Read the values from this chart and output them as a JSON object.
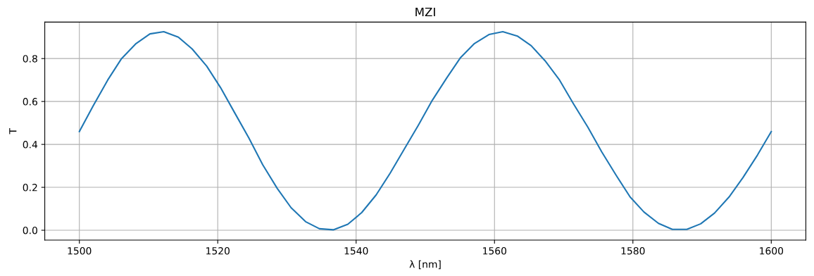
{
  "chart_data": {
    "type": "line",
    "title": "MZI",
    "xlabel": "λ [nm]",
    "ylabel": "T",
    "x": [
      1500,
      1502.0,
      1504.1,
      1506.1,
      1508.2,
      1510.2,
      1512.2,
      1514.3,
      1516.3,
      1518.4,
      1520.4,
      1522.4,
      1524.5,
      1526.5,
      1528.6,
      1530.6,
      1532.7,
      1534.7,
      1536.7,
      1538.8,
      1540.8,
      1542.9,
      1544.9,
      1546.9,
      1549.0,
      1551.0,
      1553.1,
      1555.1,
      1557.1,
      1559.2,
      1561.2,
      1563.3,
      1565.3,
      1567.3,
      1569.4,
      1571.4,
      1573.5,
      1575.5,
      1577.6,
      1579.6,
      1581.6,
      1583.7,
      1585.7,
      1587.8,
      1589.8,
      1591.8,
      1593.9,
      1595.9,
      1598.0,
      1600
    ],
    "series": [
      {
        "color": "#1f77b4",
        "values": [
          0.46,
          0.58,
          0.7,
          0.8,
          0.87,
          0.915,
          0.925,
          0.9,
          0.845,
          0.765,
          0.665,
          0.55,
          0.43,
          0.305,
          0.195,
          0.105,
          0.04,
          0.007,
          0.002,
          0.028,
          0.082,
          0.165,
          0.265,
          0.375,
          0.49,
          0.605,
          0.71,
          0.805,
          0.87,
          0.912,
          0.925,
          0.905,
          0.86,
          0.79,
          0.7,
          0.59,
          0.48,
          0.365,
          0.255,
          0.155,
          0.085,
          0.032,
          0.004,
          0.004,
          0.03,
          0.08,
          0.155,
          0.245,
          0.35,
          0.46
        ]
      }
    ],
    "xlim": [
      1495,
      1605
    ],
    "ylim": [
      -0.046,
      0.97
    ],
    "xticks": [
      1500,
      1520,
      1540,
      1560,
      1580,
      1600
    ],
    "yticks": [
      {
        "value": 0,
        "label": "0.0"
      },
      0.2,
      0.4,
      0.6,
      0.8
    ],
    "grid": true
  }
}
